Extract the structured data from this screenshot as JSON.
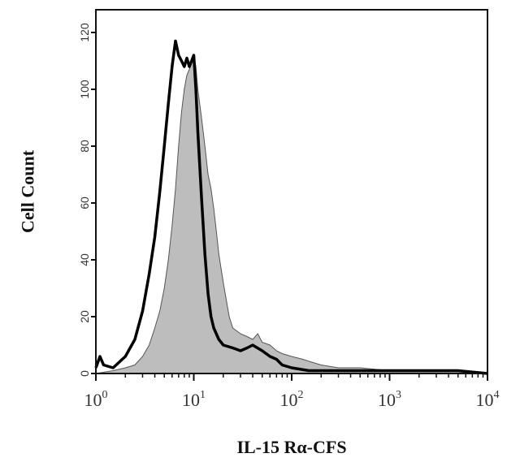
{
  "chart_data": {
    "type": "area",
    "xlabel": "IL-15 Rα-CFS",
    "ylabel": "Cell Count",
    "x_scale": "log",
    "xlim": [
      1,
      10000
    ],
    "ylim": [
      0,
      128
    ],
    "x_ticks": [
      {
        "value": 1,
        "base": "10",
        "exp": "0"
      },
      {
        "value": 10,
        "base": "10",
        "exp": "1"
      },
      {
        "value": 100,
        "base": "10",
        "exp": "2"
      },
      {
        "value": 1000,
        "base": "10",
        "exp": "3"
      },
      {
        "value": 10000,
        "base": "10",
        "exp": "4"
      }
    ],
    "y_ticks": [
      0,
      20,
      40,
      60,
      80,
      100,
      120
    ],
    "grid": false,
    "series": [
      {
        "style": "filled-gray",
        "color": "#bdbdbd",
        "points": [
          [
            1,
            0
          ],
          [
            1.5,
            1
          ],
          [
            2,
            2
          ],
          [
            2.5,
            3
          ],
          [
            3,
            6
          ],
          [
            3.5,
            10
          ],
          [
            4,
            16
          ],
          [
            4.5,
            22
          ],
          [
            5,
            30
          ],
          [
            5.5,
            40
          ],
          [
            6,
            52
          ],
          [
            6.5,
            65
          ],
          [
            7,
            80
          ],
          [
            7.5,
            92
          ],
          [
            8,
            100
          ],
          [
            8.5,
            105
          ],
          [
            9,
            107
          ],
          [
            9.5,
            109
          ],
          [
            10,
            112
          ],
          [
            10.5,
            108
          ],
          [
            11,
            100
          ],
          [
            12,
            90
          ],
          [
            13,
            80
          ],
          [
            14,
            70
          ],
          [
            15,
            65
          ],
          [
            16,
            58
          ],
          [
            17,
            50
          ],
          [
            18,
            42
          ],
          [
            20,
            32
          ],
          [
            23,
            20
          ],
          [
            25,
            16
          ],
          [
            30,
            14
          ],
          [
            35,
            13
          ],
          [
            40,
            12
          ],
          [
            45,
            14
          ],
          [
            50,
            11
          ],
          [
            60,
            10
          ],
          [
            70,
            8
          ],
          [
            80,
            7
          ],
          [
            100,
            6
          ],
          [
            130,
            5
          ],
          [
            160,
            4
          ],
          [
            200,
            3
          ],
          [
            300,
            2
          ],
          [
            500,
            2
          ],
          [
            1000,
            1
          ],
          [
            2000,
            1
          ],
          [
            5000,
            1
          ],
          [
            10000,
            0
          ]
        ]
      },
      {
        "style": "bold-black-line",
        "color": "#000000",
        "points": [
          [
            1,
            2
          ],
          [
            1.1,
            6
          ],
          [
            1.2,
            3
          ],
          [
            1.5,
            2
          ],
          [
            2,
            6
          ],
          [
            2.5,
            12
          ],
          [
            3,
            22
          ],
          [
            3.5,
            35
          ],
          [
            4,
            48
          ],
          [
            4.5,
            64
          ],
          [
            5,
            80
          ],
          [
            5.5,
            95
          ],
          [
            6,
            108
          ],
          [
            6.5,
            117
          ],
          [
            7,
            112
          ],
          [
            7.5,
            110
          ],
          [
            8,
            108
          ],
          [
            8.5,
            111
          ],
          [
            9,
            108
          ],
          [
            9.5,
            110
          ],
          [
            10,
            112
          ],
          [
            10.5,
            100
          ],
          [
            11,
            85
          ],
          [
            12,
            62
          ],
          [
            13,
            42
          ],
          [
            14,
            28
          ],
          [
            15,
            20
          ],
          [
            16,
            16
          ],
          [
            18,
            12
          ],
          [
            20,
            10
          ],
          [
            25,
            9
          ],
          [
            30,
            8
          ],
          [
            35,
            9
          ],
          [
            40,
            10
          ],
          [
            50,
            8
          ],
          [
            60,
            6
          ],
          [
            70,
            5
          ],
          [
            80,
            3
          ],
          [
            100,
            2
          ],
          [
            150,
            1
          ],
          [
            300,
            1
          ],
          [
            1000,
            1
          ],
          [
            2000,
            1
          ],
          [
            5000,
            1
          ],
          [
            10000,
            0
          ]
        ]
      }
    ]
  }
}
